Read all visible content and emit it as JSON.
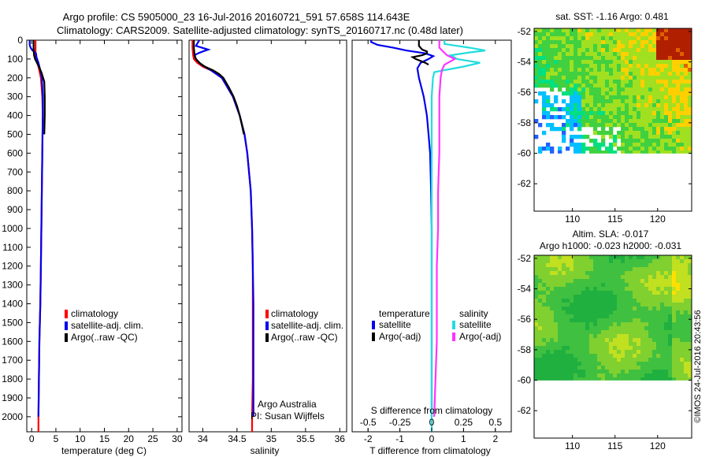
{
  "header": {
    "line1": "Argo profile: CS 5905000_23 16-Jul-2016 20160721_591 57.658S 114.643E",
    "line2": "Climatology: CARS2009. Satellite-adjusted climatology: synTS_20160717.nc (0.48d later)"
  },
  "credit": "©IMOS 24-Jul-2016 20:43:56",
  "chart_data": [
    {
      "id": "temperature",
      "type": "line",
      "xlabel": "temperature (deg C)",
      "ylabel": "",
      "xlim": [
        -1,
        31
      ],
      "ylim": [
        2080,
        0
      ],
      "xticks": [
        0,
        5,
        10,
        15,
        20,
        25,
        30
      ],
      "yticks": [
        0,
        100,
        200,
        300,
        400,
        500,
        600,
        700,
        800,
        900,
        1000,
        1100,
        1200,
        1300,
        1400,
        1500,
        1600,
        1700,
        1800,
        1900,
        2000
      ],
      "legend": [
        "climatology",
        "satellite-adj. clim.",
        "Argo(..raw -QC)"
      ],
      "series": [
        {
          "name": "climatology",
          "color": "#ff0000",
          "depth": [
            0,
            20,
            40,
            60,
            80,
            100,
            140,
            200,
            300,
            400,
            600,
            800,
            1000,
            1200,
            1400,
            1600,
            1800,
            2000,
            2080
          ],
          "values": [
            0.8,
            0.8,
            0.8,
            0.8,
            0.8,
            0.9,
            1.4,
            1.9,
            2.2,
            2.3,
            2.2,
            2.1,
            2.0,
            1.9,
            1.8,
            1.6,
            1.5,
            1.4,
            1.4
          ]
        },
        {
          "name": "satellite-adj. clim.",
          "color": "#0000ee",
          "depth": [
            0,
            10,
            25,
            40,
            55,
            70,
            90,
            120,
            160,
            200,
            300,
            400,
            600,
            800,
            1000,
            1200,
            1400,
            1600,
            1800,
            2000
          ],
          "values": [
            -0.4,
            -0.4,
            -0.4,
            -0.2,
            0.2,
            0.9,
            1.0,
            1.4,
            1.8,
            2.1,
            2.3,
            2.3,
            2.2,
            2.1,
            2.0,
            1.9,
            1.8,
            1.6,
            1.5,
            1.4
          ]
        },
        {
          "name": "Argo(..raw -QC)",
          "color": "#000000",
          "depth": [
            0,
            40,
            80,
            100,
            130,
            170,
            220,
            300,
            400,
            500
          ],
          "values": [
            0.4,
            0.4,
            0.5,
            0.7,
            1.3,
            2.0,
            2.6,
            2.7,
            2.7,
            2.6
          ]
        }
      ]
    },
    {
      "id": "salinity",
      "type": "line",
      "xlabel": "salinity",
      "ylabel": "",
      "xlim": [
        33.8,
        36.1
      ],
      "ylim": [
        2080,
        0
      ],
      "xticks": [
        34,
        34.5,
        35,
        35.5,
        36
      ],
      "legend": [
        "climatology",
        "satellite-adj. clim.",
        "Argo(..raw -QC)"
      ],
      "annotation": [
        "Argo Australia",
        "PI: Susan Wijffels"
      ],
      "series": [
        {
          "name": "climatology",
          "color": "#ff0000",
          "depth": [
            0,
            40,
            80,
            100,
            120,
            140,
            160,
            200,
            300,
            400,
            500,
            600,
            800,
            1000,
            1200,
            1400,
            1600,
            1800,
            2000,
            2080
          ],
          "values": [
            33.85,
            33.85,
            33.86,
            33.87,
            33.92,
            34.0,
            34.12,
            34.28,
            34.44,
            34.54,
            34.61,
            34.65,
            34.7,
            34.72,
            34.73,
            34.73,
            34.73,
            34.73,
            34.72,
            34.72
          ]
        },
        {
          "name": "satellite-adj. clim.",
          "color": "#0000ee",
          "depth": [
            0,
            30,
            50,
            60,
            70,
            80,
            100,
            130,
            160,
            200,
            300,
            400,
            500,
            600,
            800,
            1000,
            1200,
            1400,
            1600,
            1800,
            2000
          ],
          "values": [
            33.95,
            33.9,
            34.08,
            34.0,
            33.93,
            33.88,
            33.9,
            33.98,
            34.12,
            34.28,
            34.44,
            34.54,
            34.61,
            34.65,
            34.7,
            34.72,
            34.73,
            34.74,
            34.74,
            34.74,
            34.74
          ]
        },
        {
          "name": "Argo(..raw -QC)",
          "color": "#000000",
          "depth": [
            0,
            40,
            80,
            100,
            120,
            140,
            160,
            180,
            200,
            250,
            300,
            350,
            400,
            450,
            500
          ],
          "values": [
            33.87,
            33.87,
            33.88,
            33.9,
            33.95,
            34.03,
            34.15,
            34.24,
            34.3,
            34.38,
            34.45,
            34.5,
            34.54,
            34.57,
            34.6
          ]
        }
      ]
    },
    {
      "id": "differences",
      "type": "line",
      "xlabel": "T difference from climatology",
      "xlabel_top": "S difference from climatology",
      "xlim": [
        -2.5,
        2.5
      ],
      "ylim": [
        2080,
        0
      ],
      "xticks": [
        -2,
        -1,
        0,
        1,
        2
      ],
      "s_xticks": [
        -0.5,
        -0.25,
        0,
        0.25,
        0.5
      ],
      "legend_groups": [
        {
          "title": "temperature",
          "entries": [
            "satellite",
            "Argo(-adj)"
          ]
        },
        {
          "title": "salinity",
          "entries": [
            "satellite",
            "Argo(-adj)"
          ]
        }
      ],
      "series": [
        {
          "name": "temperature satellite",
          "color": "#0000ee",
          "depth": [
            0,
            10,
            25,
            40,
            55,
            70,
            85,
            100,
            120,
            150,
            200,
            300,
            400,
            500,
            600,
            800,
            1000,
            1400,
            2000
          ],
          "values": [
            -1.9,
            -1.9,
            -1.7,
            -1.2,
            -0.8,
            -0.2,
            0.05,
            -0.1,
            -0.35,
            -0.45,
            -0.4,
            -0.25,
            -0.15,
            -0.1,
            -0.05,
            -0.02,
            0,
            0,
            0
          ]
        },
        {
          "name": "temperature Argo(-adj)",
          "color": "#000000",
          "depth": [
            0,
            30,
            50,
            60,
            70,
            80,
            90,
            100,
            120,
            130
          ],
          "values": [
            -0.4,
            -0.4,
            -0.3,
            -0.15,
            -0.15,
            -0.3,
            -0.6,
            -0.5,
            -0.2,
            -0.1
          ]
        },
        {
          "name": "salinity satellite",
          "color": "#22dddd",
          "depth": [
            0,
            20,
            40,
            55,
            65,
            80,
            100,
            120,
            140,
            170,
            200,
            300,
            600,
            1000,
            1600,
            2080
          ],
          "values": [
            0.1,
            0.1,
            0.3,
            0.42,
            0.3,
            0.15,
            0.2,
            0.38,
            0.25,
            0.02,
            0.01,
            0,
            0,
            0,
            0,
            0
          ]
        },
        {
          "name": "salinity Argo(-adj)",
          "color": "#ff33ff",
          "depth": [
            0,
            40,
            80,
            100,
            130,
            160,
            200,
            300,
            400,
            500,
            600,
            800,
            1000,
            1200,
            1400,
            1600,
            1800,
            2000
          ],
          "values": [
            0.06,
            0.06,
            0.12,
            0.18,
            0.1,
            0.08,
            0.07,
            0.06,
            0.06,
            0.06,
            0.06,
            0.05,
            0.05,
            0.04,
            0.04,
            0.04,
            0.03,
            0.02
          ]
        }
      ]
    },
    {
      "id": "sst-map",
      "type": "heatmap",
      "title": "sat. SST: -1.16 Argo: 0.481",
      "xlim": [
        105.5,
        124
      ],
      "ylim": [
        -63.8,
        -51.8
      ],
      "xticks": [
        110,
        115,
        120
      ],
      "yticks": [
        -52,
        -54,
        -56,
        -58,
        -60,
        -62
      ],
      "data_south_limit": -60,
      "palette": [
        "#2060ff",
        "#00c0ff",
        "#00e080",
        "#40d040",
        "#a0e020",
        "#ffd000",
        "#e06000",
        "#b02000"
      ]
    },
    {
      "id": "sla-map",
      "type": "heatmap",
      "title": "Altim. SLA: -0.017",
      "subtitle": "Argo h1000: -0.023 h2000: -0.031",
      "xlim": [
        105.5,
        124
      ],
      "ylim": [
        -63.8,
        -51.8
      ],
      "xticks": [
        110,
        115,
        120
      ],
      "yticks": [
        -52,
        -54,
        -56,
        -58,
        -60,
        -62
      ],
      "data_south_limit": -60,
      "palette": [
        "#20b040",
        "#40c040",
        "#80d030",
        "#c0e020",
        "#ffe000"
      ]
    }
  ]
}
